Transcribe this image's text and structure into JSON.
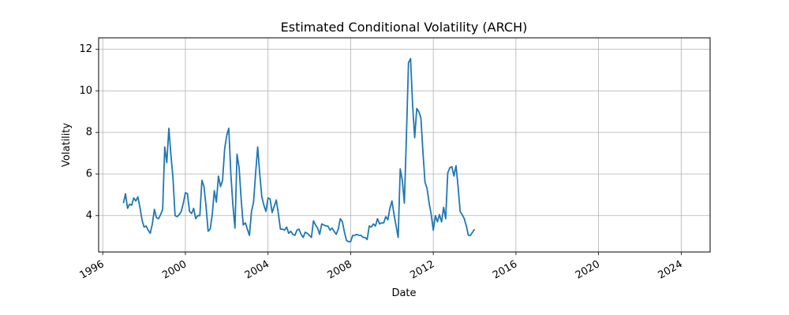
{
  "chart_data": {
    "type": "line",
    "title": "Estimated Conditional Volatility (ARCH)",
    "xlabel": "Date",
    "ylabel": "Volatility",
    "grid": true,
    "xlim": [
      1995.8,
      2025.4
    ],
    "ylim": [
      2.25,
      12.55
    ],
    "x_ticks": [
      1996,
      2000,
      2004,
      2008,
      2012,
      2016,
      2020,
      2024
    ],
    "y_ticks": [
      4,
      6,
      8,
      10,
      12
    ],
    "series": [
      {
        "color": "#1f77b4",
        "points": [
          [
            1997.0,
            4.6
          ],
          [
            1997.1,
            5.05
          ],
          [
            1997.2,
            4.35
          ],
          [
            1997.3,
            4.55
          ],
          [
            1997.4,
            4.5
          ],
          [
            1997.5,
            4.85
          ],
          [
            1997.6,
            4.7
          ],
          [
            1997.7,
            4.9
          ],
          [
            1997.8,
            4.4
          ],
          [
            1997.9,
            3.8
          ],
          [
            1998.0,
            3.45
          ],
          [
            1998.1,
            3.5
          ],
          [
            1998.2,
            3.3
          ],
          [
            1998.3,
            3.15
          ],
          [
            1998.4,
            3.6
          ],
          [
            1998.5,
            4.3
          ],
          [
            1998.6,
            3.9
          ],
          [
            1998.7,
            3.85
          ],
          [
            1998.8,
            4.05
          ],
          [
            1998.9,
            4.3
          ],
          [
            1999.0,
            7.3
          ],
          [
            1999.1,
            6.55
          ],
          [
            1999.2,
            8.2
          ],
          [
            1999.3,
            6.9
          ],
          [
            1999.4,
            5.8
          ],
          [
            1999.5,
            4.0
          ],
          [
            1999.6,
            3.95
          ],
          [
            1999.7,
            4.05
          ],
          [
            1999.8,
            4.2
          ],
          [
            1999.9,
            4.6
          ],
          [
            2000.0,
            5.1
          ],
          [
            2000.1,
            5.05
          ],
          [
            2000.2,
            4.2
          ],
          [
            2000.3,
            4.1
          ],
          [
            2000.4,
            4.35
          ],
          [
            2000.5,
            3.85
          ],
          [
            2000.6,
            4.0
          ],
          [
            2000.7,
            4.0
          ],
          [
            2000.8,
            5.7
          ],
          [
            2000.9,
            5.4
          ],
          [
            2001.0,
            4.45
          ],
          [
            2001.1,
            3.25
          ],
          [
            2001.2,
            3.35
          ],
          [
            2001.3,
            4.05
          ],
          [
            2001.4,
            5.2
          ],
          [
            2001.5,
            4.65
          ],
          [
            2001.6,
            5.9
          ],
          [
            2001.7,
            5.4
          ],
          [
            2001.8,
            5.7
          ],
          [
            2001.9,
            7.2
          ],
          [
            2002.0,
            7.85
          ],
          [
            2002.1,
            8.2
          ],
          [
            2002.2,
            6.0
          ],
          [
            2002.3,
            4.5
          ],
          [
            2002.4,
            3.4
          ],
          [
            2002.5,
            6.95
          ],
          [
            2002.6,
            6.3
          ],
          [
            2002.7,
            4.8
          ],
          [
            2002.8,
            3.55
          ],
          [
            2002.9,
            3.65
          ],
          [
            2003.0,
            3.35
          ],
          [
            2003.1,
            3.05
          ],
          [
            2003.2,
            4.2
          ],
          [
            2003.3,
            4.65
          ],
          [
            2003.4,
            6.05
          ],
          [
            2003.5,
            7.3
          ],
          [
            2003.6,
            6.0
          ],
          [
            2003.7,
            4.9
          ],
          [
            2003.8,
            4.5
          ],
          [
            2003.9,
            4.2
          ],
          [
            2004.0,
            4.85
          ],
          [
            2004.1,
            4.8
          ],
          [
            2004.2,
            4.15
          ],
          [
            2004.3,
            4.45
          ],
          [
            2004.4,
            4.75
          ],
          [
            2004.5,
            4.1
          ],
          [
            2004.6,
            3.35
          ],
          [
            2004.7,
            3.35
          ],
          [
            2004.8,
            3.3
          ],
          [
            2004.9,
            3.45
          ],
          [
            2005.0,
            3.15
          ],
          [
            2005.1,
            3.25
          ],
          [
            2005.2,
            3.1
          ],
          [
            2005.3,
            3.05
          ],
          [
            2005.4,
            3.3
          ],
          [
            2005.5,
            3.35
          ],
          [
            2005.6,
            3.1
          ],
          [
            2005.7,
            2.95
          ],
          [
            2005.8,
            3.2
          ],
          [
            2005.9,
            3.15
          ],
          [
            2006.0,
            3.05
          ],
          [
            2006.1,
            2.95
          ],
          [
            2006.2,
            3.75
          ],
          [
            2006.3,
            3.55
          ],
          [
            2006.4,
            3.4
          ],
          [
            2006.5,
            3.1
          ],
          [
            2006.6,
            3.6
          ],
          [
            2006.7,
            3.55
          ],
          [
            2006.8,
            3.5
          ],
          [
            2006.9,
            3.5
          ],
          [
            2007.0,
            3.3
          ],
          [
            2007.1,
            3.4
          ],
          [
            2007.2,
            3.25
          ],
          [
            2007.3,
            3.1
          ],
          [
            2007.4,
            3.35
          ],
          [
            2007.5,
            3.85
          ],
          [
            2007.6,
            3.7
          ],
          [
            2007.7,
            3.2
          ],
          [
            2007.8,
            2.8
          ],
          [
            2007.9,
            2.75
          ],
          [
            2008.0,
            2.75
          ],
          [
            2008.1,
            3.05
          ],
          [
            2008.2,
            3.05
          ],
          [
            2008.3,
            3.1
          ],
          [
            2008.4,
            3.05
          ],
          [
            2008.5,
            3.05
          ],
          [
            2008.6,
            2.95
          ],
          [
            2008.7,
            2.95
          ],
          [
            2008.8,
            2.85
          ],
          [
            2008.9,
            3.5
          ],
          [
            2009.0,
            3.45
          ],
          [
            2009.1,
            3.6
          ],
          [
            2009.2,
            3.5
          ],
          [
            2009.3,
            3.85
          ],
          [
            2009.4,
            3.6
          ],
          [
            2009.5,
            3.65
          ],
          [
            2009.6,
            3.65
          ],
          [
            2009.7,
            3.95
          ],
          [
            2009.8,
            3.8
          ],
          [
            2009.9,
            4.35
          ],
          [
            2010.0,
            4.7
          ],
          [
            2010.1,
            4.05
          ],
          [
            2010.2,
            3.5
          ],
          [
            2010.3,
            2.95
          ],
          [
            2010.4,
            6.25
          ],
          [
            2010.5,
            5.7
          ],
          [
            2010.6,
            4.6
          ],
          [
            2010.7,
            7.85
          ],
          [
            2010.8,
            11.35
          ],
          [
            2010.9,
            11.55
          ],
          [
            2011.0,
            9.3
          ],
          [
            2011.1,
            7.75
          ],
          [
            2011.2,
            9.15
          ],
          [
            2011.3,
            9.0
          ],
          [
            2011.4,
            8.7
          ],
          [
            2011.5,
            7.05
          ],
          [
            2011.6,
            5.6
          ],
          [
            2011.7,
            5.3
          ],
          [
            2011.8,
            4.6
          ],
          [
            2011.9,
            4.05
          ],
          [
            2012.0,
            3.3
          ],
          [
            2012.1,
            4.0
          ],
          [
            2012.2,
            3.7
          ],
          [
            2012.3,
            4.05
          ],
          [
            2012.4,
            3.7
          ],
          [
            2012.5,
            4.4
          ],
          [
            2012.6,
            3.85
          ],
          [
            2012.7,
            6.05
          ],
          [
            2012.8,
            6.3
          ],
          [
            2012.9,
            6.35
          ],
          [
            2013.0,
            5.9
          ],
          [
            2013.1,
            6.4
          ],
          [
            2013.2,
            5.4
          ],
          [
            2013.3,
            4.2
          ],
          [
            2013.4,
            4.05
          ],
          [
            2013.5,
            3.85
          ],
          [
            2013.6,
            3.5
          ],
          [
            2013.7,
            3.05
          ],
          [
            2013.8,
            3.05
          ],
          [
            2013.9,
            3.2
          ],
          [
            2014.0,
            3.35
          ]
        ]
      }
    ]
  }
}
